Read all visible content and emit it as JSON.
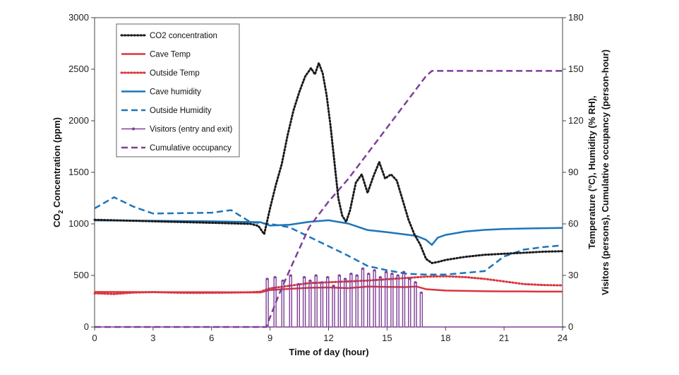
{
  "chart_data": {
    "type": "line",
    "xlabel": "Time of day (hour)",
    "ylabel_parts": [
      "CO",
      "2",
      " Concentration (ppm)"
    ],
    "y2label": [
      "Temperature (°C), Humidity (% RH),",
      "Visitors (persons), Cumulative occupancy (person-hour)"
    ],
    "xlim": [
      0,
      24
    ],
    "ylim": [
      0,
      3000
    ],
    "y2lim": [
      0,
      180
    ],
    "xticks": [
      "0",
      "3",
      "6",
      "9",
      "12",
      "15",
      "18",
      "21",
      "24"
    ],
    "yticks": [
      "0",
      "500",
      "1000",
      "1500",
      "2000",
      "2500",
      "3000"
    ],
    "y2ticks": [
      "0",
      "30",
      "60",
      "90",
      "120",
      "150",
      "180"
    ],
    "colors": {
      "black": "#1a1a1a",
      "red": "#d9363e",
      "blue": "#1b75bc",
      "purple": "#7f3f98"
    },
    "series": [
      {
        "name": "CO2 concentration",
        "axis": "left",
        "style": "dotted",
        "color": "black",
        "x": [
          0,
          2,
          4,
          6,
          8,
          8.4,
          8.7,
          9,
          9.3,
          9.6,
          9.9,
          10.2,
          10.5,
          10.8,
          11.1,
          11.3,
          11.5,
          11.7,
          11.9,
          12.1,
          12.3,
          12.5,
          12.7,
          12.9,
          13.1,
          13.4,
          13.7,
          14,
          14.3,
          14.6,
          14.9,
          15.2,
          15.5,
          15.8,
          16.1,
          16.4,
          16.7,
          17,
          17.3,
          17.6,
          18,
          19,
          20,
          21,
          22,
          23,
          24
        ],
        "y": [
          1040,
          1030,
          1020,
          1010,
          1000,
          980,
          900,
          1150,
          1380,
          1580,
          1860,
          2100,
          2280,
          2430,
          2510,
          2450,
          2560,
          2460,
          2250,
          1950,
          1600,
          1250,
          1080,
          1020,
          1130,
          1400,
          1480,
          1300,
          1460,
          1600,
          1440,
          1480,
          1420,
          1230,
          1040,
          900,
          800,
          660,
          620,
          630,
          650,
          680,
          700,
          710,
          720,
          730,
          735
        ]
      },
      {
        "name": "Cave Temp",
        "axis": "right",
        "style": "solid",
        "color": "red",
        "x": [
          0,
          3,
          6,
          8.5,
          9,
          10,
          11,
          12,
          13,
          14,
          15,
          16,
          16.5,
          17,
          18,
          19,
          20,
          21,
          22,
          23,
          24
        ],
        "y": [
          20.4,
          20.3,
          20.2,
          20.1,
          21.5,
          22.2,
          22.8,
          23,
          22.6,
          23.5,
          23.3,
          23.2,
          23.6,
          22,
          21.2,
          21,
          20.8,
          20.7,
          20.7,
          20.6,
          20.6
        ]
      },
      {
        "name": "Outside Temp",
        "axis": "right",
        "style": "dotted",
        "color": "red",
        "x": [
          0,
          1,
          2,
          3,
          4,
          5,
          6,
          7,
          8,
          8.5,
          9,
          10,
          11,
          12,
          13,
          14,
          15,
          16,
          17,
          18,
          19,
          20,
          21,
          22,
          23,
          24
        ],
        "y": [
          19.6,
          19.2,
          20,
          20.3,
          20,
          19.8,
          19.9,
          20,
          20.2,
          20.5,
          22.5,
          24,
          25.5,
          26,
          26.5,
          27,
          27.8,
          28.5,
          29.3,
          29.5,
          29,
          28,
          26.5,
          25,
          24.4,
          24.2
        ]
      },
      {
        "name": "Cave humidity",
        "axis": "right",
        "style": "solid",
        "color": "blue",
        "x": [
          0,
          3,
          6,
          8.5,
          9,
          10,
          11,
          12,
          13,
          14,
          15,
          16,
          16.5,
          17,
          17.3,
          17.6,
          18,
          19,
          20,
          21,
          22,
          23,
          24
        ],
        "y": [
          62,
          61.8,
          61.5,
          61,
          59,
          59.5,
          61.2,
          62.1,
          60.2,
          56.4,
          55.2,
          53.7,
          53,
          50.7,
          47.8,
          52,
          53.6,
          55.5,
          56.5,
          57,
          57.3,
          57.5,
          57.6
        ]
      },
      {
        "name": "Outside Humidity",
        "axis": "right",
        "style": "dashed",
        "color": "blue",
        "x": [
          0,
          1,
          2,
          3,
          6,
          7,
          8,
          9,
          10,
          11,
          12,
          13,
          14,
          15,
          16,
          17,
          18,
          19,
          20,
          21,
          22,
          23,
          24
        ],
        "y": [
          69,
          75.5,
          70,
          66,
          66.5,
          68,
          61,
          60,
          58,
          52.5,
          47,
          41.5,
          35.5,
          33,
          31,
          30.5,
          30.5,
          31.5,
          32.5,
          41,
          45,
          46.5,
          47.5
        ]
      },
      {
        "name": "Visitors (entry and exit)",
        "axis": "right",
        "style": "spikes",
        "color": "purple",
        "x": [
          0,
          8.7,
          8.8,
          9.2,
          9.6,
          10,
          10.4,
          10.7,
          11,
          11.3,
          11.6,
          11.9,
          12.2,
          12.5,
          12.8,
          13.1,
          13.4,
          13.7,
          14,
          14.3,
          14.6,
          14.9,
          15.2,
          15.5,
          15.8,
          16.1,
          16.4,
          16.7,
          17,
          17.5,
          24
        ],
        "y": [
          0,
          0,
          28,
          29,
          27,
          30,
          25,
          29,
          27,
          30,
          26,
          29,
          24,
          30,
          28,
          31,
          30,
          34,
          31,
          33,
          29,
          32,
          31,
          30,
          32,
          28,
          26,
          20,
          0,
          0,
          0
        ]
      },
      {
        "name": "Cumulative occupancy",
        "axis": "right",
        "style": "dashed",
        "color": "purple",
        "x": [
          0,
          8.8,
          9.5,
          10,
          11,
          12,
          13,
          14,
          15,
          16,
          17,
          17.3,
          18,
          24
        ],
        "y": [
          0,
          0,
          20,
          33,
          58,
          73,
          86,
          101,
          116,
          131,
          146,
          149,
          149,
          149
        ]
      }
    ]
  }
}
